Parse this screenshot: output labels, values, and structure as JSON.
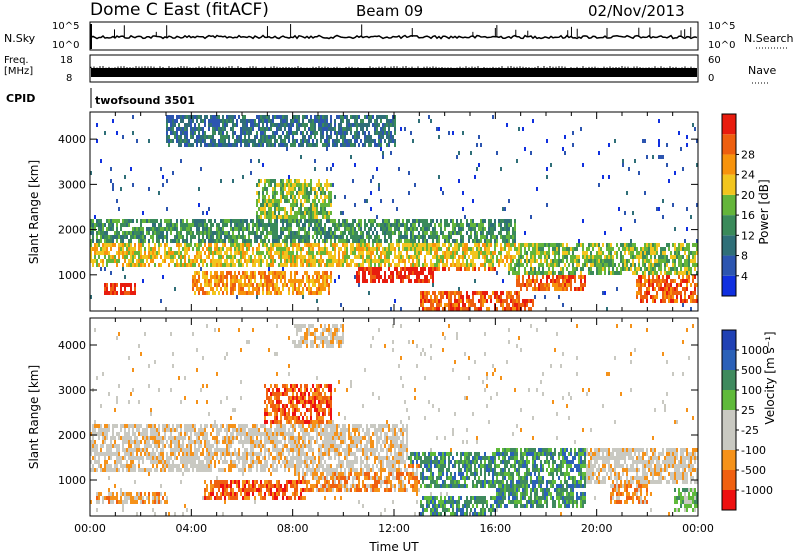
{
  "header": {
    "title": "Dome C East (fitACF)",
    "beam": "Beam 09",
    "date": "02/Nov/2013"
  },
  "strips": {
    "nsky_label": "N.Sky",
    "nsky_ticks": [
      "10^5",
      "10^0"
    ],
    "nsearch_label": "N.Search",
    "nsearch_ticks": [
      "10^5",
      "10^0"
    ],
    "freq_label_1": "Freq.",
    "freq_label_2": "[MHz]",
    "freq_ticks": [
      "18",
      "8"
    ],
    "nave_label": "Nave",
    "nave_ticks": [
      "60",
      "0"
    ],
    "cpid_label": "CPID",
    "cpid_value": "twofsound 3501"
  },
  "colors": {
    "power": [
      "#1030e0",
      "#2c55b0",
      "#2f6f78",
      "#3a8a5a",
      "#64b53a",
      "#f2c51e",
      "#f7930c",
      "#ee5f0f",
      "#e81c0e"
    ],
    "velocity": [
      "#ee1010",
      "#f06010",
      "#f5921a",
      "#c9c9c2",
      "#c9c9c2",
      "#5fba3a",
      "#3f8a5e",
      "#2b61b8",
      "#2041b4"
    ]
  },
  "chart_data": [
    {
      "type": "heatmap",
      "name": "power",
      "xlabel": "",
      "ylabel": "Slant Range [km]",
      "x_range_hours": [
        0,
        24
      ],
      "yticks": [
        "1000",
        "2000",
        "3000",
        "4000"
      ],
      "ylim": [
        200,
        4600
      ],
      "colorbar_label": "Power [dB]",
      "colorbar_ticks": [
        "4",
        "8",
        "12",
        "16",
        "20",
        "24",
        "28"
      ],
      "features": [
        {
          "t0": 0.0,
          "t1": 16.8,
          "r0": 1200,
          "r1": 1700,
          "level": 5
        },
        {
          "t0": 0.3,
          "t1": 3.5,
          "r0": 1300,
          "r1": 1500,
          "level": 7
        },
        {
          "t0": 4.0,
          "t1": 8.0,
          "r0": 1300,
          "r1": 1500,
          "level": 7
        },
        {
          "t0": 9.0,
          "t1": 14.5,
          "r0": 1300,
          "r1": 1550,
          "level": 6
        },
        {
          "t0": 10.5,
          "t1": 13.5,
          "r0": 850,
          "r1": 1450,
          "level": 8
        },
        {
          "t0": 13.0,
          "t1": 16.0,
          "r0": 1050,
          "r1": 1550,
          "level": 7
        },
        {
          "t0": 0.5,
          "t1": 1.8,
          "r0": 550,
          "r1": 800,
          "level": 8
        },
        {
          "t0": 4.0,
          "t1": 9.5,
          "r0": 550,
          "r1": 1050,
          "level": 6
        },
        {
          "t0": 5.0,
          "t1": 8.5,
          "r0": 700,
          "r1": 950,
          "level": 7
        },
        {
          "t0": 0.0,
          "t1": 16.8,
          "r0": 1700,
          "r1": 2200,
          "level": 3
        },
        {
          "t0": 1.5,
          "t1": 8.5,
          "r0": 1850,
          "r1": 2150,
          "level": 5
        },
        {
          "t0": 6.5,
          "t1": 9.5,
          "r0": 2150,
          "r1": 3100,
          "level": 4
        },
        {
          "t0": 7.0,
          "t1": 9.0,
          "r0": 2200,
          "r1": 2500,
          "level": 6
        },
        {
          "t0": 13.0,
          "t1": 17.0,
          "r0": 200,
          "r1": 600,
          "level": 7
        },
        {
          "t0": 15.0,
          "t1": 17.5,
          "r0": 200,
          "r1": 450,
          "level": 8
        },
        {
          "t0": 16.5,
          "t1": 24.0,
          "r0": 1000,
          "r1": 1700,
          "level": 4
        },
        {
          "t0": 16.8,
          "t1": 19.5,
          "r0": 600,
          "r1": 1500,
          "level": 7
        },
        {
          "t0": 19.5,
          "t1": 22.0,
          "r0": 1100,
          "r1": 1500,
          "level": 6
        },
        {
          "t0": 21.5,
          "t1": 24.0,
          "r0": 400,
          "r1": 1200,
          "level": 7
        },
        {
          "t0": 3.0,
          "t1": 12.0,
          "r0": 3800,
          "r1": 4500,
          "level": 2
        },
        {
          "t0": 0.0,
          "t1": 24.0,
          "r0": 200,
          "r1": 4500,
          "level": 1
        }
      ]
    },
    {
      "type": "heatmap",
      "name": "velocity",
      "xlabel": "Time UT",
      "ylabel": "Slant Range [km]",
      "x_range_hours": [
        0,
        24
      ],
      "xticks": [
        "00:00",
        "04:00",
        "08:00",
        "12:00",
        "16:00",
        "20:00",
        "00:00"
      ],
      "yticks": [
        "1000",
        "2000",
        "3000",
        "4000"
      ],
      "ylim": [
        200,
        4600
      ],
      "colorbar_label": "Velocity [m s⁻¹]",
      "colorbar_ticks": [
        "1000",
        "500",
        "100",
        "25",
        "-25",
        "-100",
        "-500",
        "-1000"
      ],
      "features": [
        {
          "t0": 0.0,
          "t1": 12.5,
          "r0": 1200,
          "r1": 2200,
          "level": 3
        },
        {
          "t0": 0.2,
          "t1": 3.0,
          "r0": 500,
          "r1": 750,
          "level": 2
        },
        {
          "t0": 4.5,
          "t1": 8.5,
          "r0": 600,
          "r1": 1000,
          "level": 1
        },
        {
          "t0": 8.0,
          "t1": 13.0,
          "r0": 700,
          "r1": 1350,
          "level": 2
        },
        {
          "t0": 6.8,
          "t1": 9.5,
          "r0": 2200,
          "r1": 3100,
          "level": 1
        },
        {
          "t0": 12.0,
          "t1": 16.0,
          "r0": 800,
          "r1": 1600,
          "level": 6
        },
        {
          "t0": 16.0,
          "t1": 19.5,
          "r0": 400,
          "r1": 1700,
          "level": 6
        },
        {
          "t0": 13.0,
          "t1": 16.0,
          "r0": 200,
          "r1": 600,
          "level": 6
        },
        {
          "t0": 19.5,
          "t1": 24.0,
          "r0": 900,
          "r1": 1700,
          "level": 3
        },
        {
          "t0": 20.5,
          "t1": 22.0,
          "r0": 500,
          "r1": 900,
          "level": 2
        },
        {
          "t0": 23.0,
          "t1": 24.0,
          "r0": 300,
          "r1": 800,
          "level": 5
        },
        {
          "t0": 8.0,
          "t1": 10.0,
          "r0": 3900,
          "r1": 4500,
          "level": 3
        },
        {
          "t0": 0.0,
          "t1": 24.0,
          "r0": 200,
          "r1": 4500,
          "level": 3
        }
      ]
    }
  ]
}
